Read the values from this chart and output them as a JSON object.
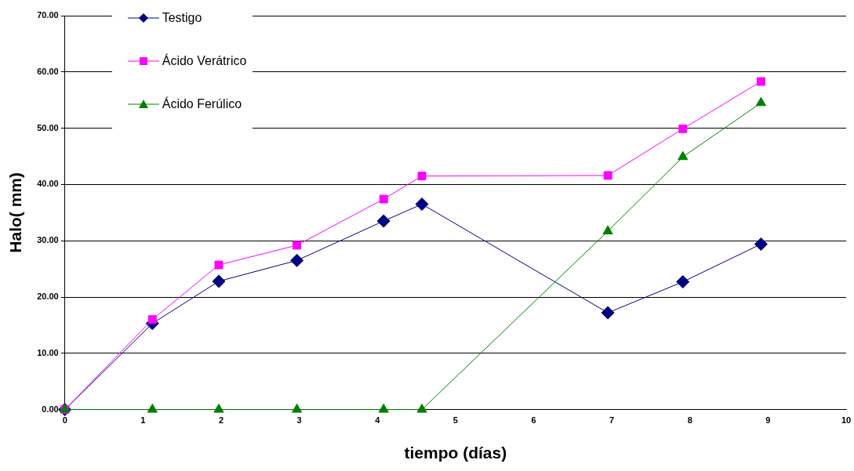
{
  "chart_data": {
    "type": "line",
    "xlabel": "tiempo (días)",
    "ylabel": "Halo( mm)",
    "x": [
      0,
      1.12,
      1.97,
      2.97,
      4.08,
      4.57,
      6.95,
      7.91,
      8.91
    ],
    "series": [
      {
        "name": "Testigo",
        "color": "#000080",
        "marker": "diamond",
        "values": [
          0,
          15.3,
          22.8,
          26.5,
          33.5,
          36.5,
          17.2,
          22.7,
          29.4
        ]
      },
      {
        "name": "Ácido Verátrico",
        "color": "#ff00ff",
        "marker": "square",
        "values": [
          0,
          16.0,
          25.7,
          29.2,
          37.4,
          41.5,
          41.6,
          49.9,
          58.3
        ]
      },
      {
        "name": "Ácido Ferúlico",
        "color": "#008000",
        "marker": "triangle",
        "values": [
          0,
          0,
          0,
          0,
          0,
          0,
          31.7,
          44.9,
          54.5
        ]
      }
    ],
    "xlim": [
      0,
      10
    ],
    "xticks": [
      0,
      1,
      2,
      3,
      4,
      5,
      6,
      7,
      8,
      9,
      10
    ],
    "ylim": [
      0,
      70
    ],
    "yticks": [
      {
        "value": 0,
        "label": "0.00"
      },
      {
        "value": 10,
        "label": "10.00"
      },
      {
        "value": 20,
        "label": "20.00"
      },
      {
        "value": 30,
        "label": "30.00"
      },
      {
        "value": 40,
        "label": "40.00"
      },
      {
        "value": 50,
        "label": "50.00"
      },
      {
        "value": 60,
        "label": "60.00"
      },
      {
        "value": 70,
        "label": "70.00"
      }
    ],
    "grid": "y",
    "legend": "top left",
    "line_style": "solid"
  }
}
